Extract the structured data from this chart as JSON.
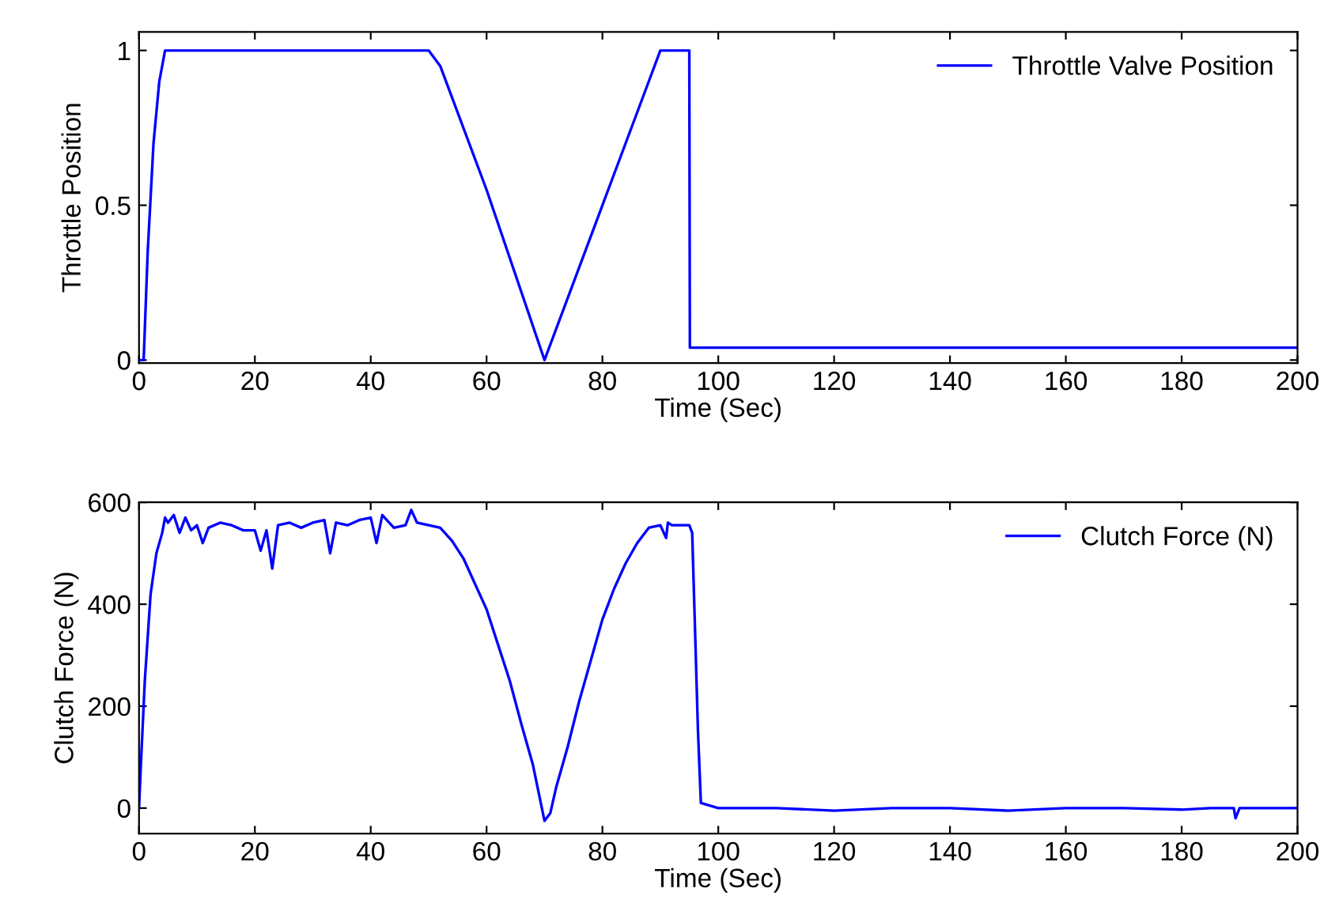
{
  "chart_data": [
    {
      "type": "line",
      "ylabel": "Throttle Position",
      "xlabel": "Time (Sec)",
      "xlim": [
        0,
        200
      ],
      "xticks": [
        0,
        20,
        40,
        60,
        80,
        100,
        120,
        140,
        160,
        180,
        200
      ],
      "ylim": [
        -0.01,
        1.06
      ],
      "yticks": [
        0,
        0.5,
        1
      ],
      "legend": "top right",
      "grid": false,
      "series": [
        {
          "name": "Throttle Valve Position",
          "color": "#0000ff",
          "x": [
            0,
            0.8,
            1.5,
            2.5,
            3.5,
            4.5,
            50,
            52,
            60,
            70,
            80,
            88,
            90,
            95,
            95.1,
            200
          ],
          "values": [
            0,
            0,
            0.35,
            0.7,
            0.9,
            1,
            1,
            0.95,
            0.55,
            0,
            0.5,
            0.9,
            1,
            1,
            0.04,
            0.04
          ]
        }
      ]
    },
    {
      "type": "line",
      "ylabel": "Clutch Force (N)",
      "xlabel": "Time (Sec)",
      "xlim": [
        0,
        200
      ],
      "xticks": [
        0,
        20,
        40,
        60,
        80,
        100,
        120,
        140,
        160,
        180,
        200
      ],
      "ylim": [
        -50,
        600
      ],
      "yticks": [
        0,
        200,
        400,
        600
      ],
      "legend": "top right",
      "grid": false,
      "series": [
        {
          "name": "Clutch Force (N)",
          "color": "#0000ff",
          "x": [
            0,
            0.3,
            1,
            2,
            3,
            4,
            4.5,
            5,
            6,
            7,
            8,
            9,
            10,
            11,
            12,
            14,
            16,
            18,
            20,
            21,
            22,
            23,
            24,
            26,
            28,
            30,
            32,
            33,
            34,
            36,
            38,
            40,
            41,
            42,
            44,
            46,
            47,
            48,
            50,
            52,
            54,
            56,
            58,
            60,
            62,
            64,
            66,
            68,
            70,
            71,
            72,
            74,
            76,
            78,
            80,
            82,
            84,
            86,
            88,
            90,
            91,
            91.3,
            92,
            95,
            95.5,
            96.5,
            97,
            100,
            110,
            120,
            130,
            140,
            150,
            160,
            170,
            180,
            185,
            189,
            189.3,
            190,
            200
          ],
          "values": [
            0,
            80,
            250,
            420,
            500,
            540,
            570,
            560,
            575,
            540,
            570,
            545,
            555,
            520,
            550,
            560,
            555,
            545,
            545,
            505,
            545,
            470,
            555,
            560,
            550,
            560,
            565,
            500,
            560,
            555,
            565,
            570,
            520,
            575,
            550,
            555,
            585,
            560,
            555,
            550,
            525,
            490,
            440,
            390,
            320,
            250,
            165,
            85,
            -25,
            -10,
            40,
            120,
            210,
            290,
            370,
            430,
            480,
            520,
            550,
            555,
            530,
            560,
            555,
            555,
            540,
            150,
            10,
            0,
            0,
            -5,
            0,
            0,
            -5,
            0,
            0,
            -3,
            0,
            0,
            -20,
            0,
            0
          ]
        }
      ]
    }
  ]
}
